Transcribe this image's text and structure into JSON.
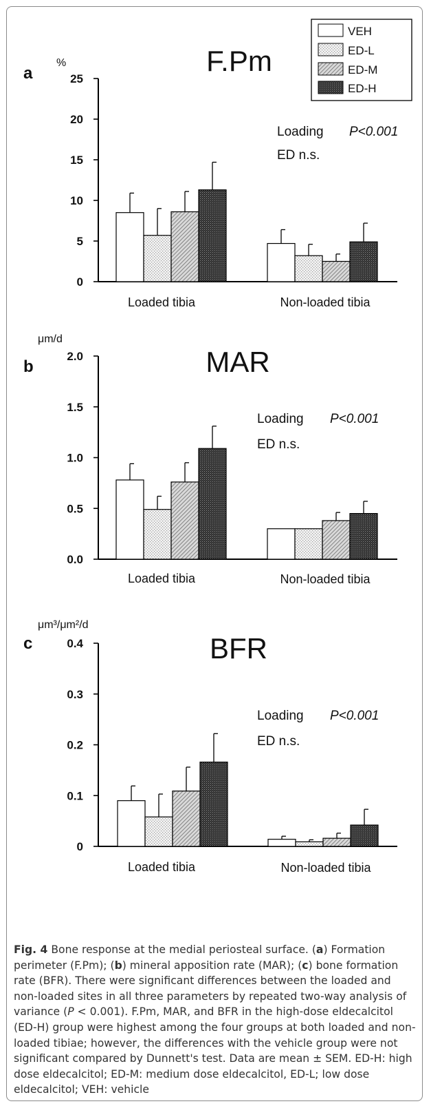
{
  "colors": {
    "axis": "#000000",
    "text": "#111111",
    "caption_text": "#333333"
  },
  "legend": {
    "entries": [
      {
        "label": "VEH",
        "pattern": "white-fill"
      },
      {
        "label": "ED-L",
        "pattern": "light-dots"
      },
      {
        "label": "ED-M",
        "pattern": "diagonal-hatch"
      },
      {
        "label": "ED-H",
        "pattern": "dark-crosshatch"
      }
    ]
  },
  "chart_data": [
    {
      "type": "bar",
      "panel_letter": "a",
      "title": "F.Pm",
      "ylabel": "%",
      "ylim": [
        0,
        25
      ],
      "yticks": [
        "0",
        "5",
        "10",
        "15",
        "20",
        "25"
      ],
      "tick_values": [
        0,
        5,
        10,
        15,
        20,
        25
      ],
      "categories": [
        "Loaded tibia",
        "Non-loaded tibia"
      ],
      "series": [
        {
          "name": "VEH",
          "values": [
            8.5,
            4.7
          ],
          "errors": [
            2.4,
            1.7
          ]
        },
        {
          "name": "ED-L",
          "values": [
            5.7,
            3.2
          ],
          "errors": [
            3.3,
            1.4
          ]
        },
        {
          "name": "ED-M",
          "values": [
            8.6,
            2.5
          ],
          "errors": [
            2.5,
            0.9
          ]
        },
        {
          "name": "ED-H",
          "values": [
            11.3,
            4.9
          ],
          "errors": [
            3.4,
            2.3
          ]
        }
      ],
      "annotations": {
        "loading_label": "Loading",
        "loading_p": "P<0.001",
        "ed_label": "ED n.s."
      },
      "grid": false,
      "legend_placement": "top-right"
    },
    {
      "type": "bar",
      "panel_letter": "b",
      "title": "MAR",
      "ylabel": "μm/d",
      "ylim": [
        0,
        2.0
      ],
      "yticks": [
        "0.0",
        "0.5",
        "1.0",
        "1.5",
        "2.0"
      ],
      "tick_values": [
        0,
        0.5,
        1.0,
        1.5,
        2.0
      ],
      "categories": [
        "Loaded tibia",
        "Non-loaded tibia"
      ],
      "series": [
        {
          "name": "VEH",
          "values": [
            0.78,
            0.3
          ],
          "errors": [
            0.16,
            0
          ]
        },
        {
          "name": "ED-L",
          "values": [
            0.49,
            0.3
          ],
          "errors": [
            0.13,
            0
          ]
        },
        {
          "name": "ED-M",
          "values": [
            0.76,
            0.38
          ],
          "errors": [
            0.19,
            0.08
          ]
        },
        {
          "name": "ED-H",
          "values": [
            1.09,
            0.45
          ],
          "errors": [
            0.22,
            0.12
          ]
        }
      ],
      "annotations": {
        "loading_label": "Loading",
        "loading_p": "P<0.001",
        "ed_label": "ED n.s."
      },
      "grid": false
    },
    {
      "type": "bar",
      "panel_letter": "c",
      "title": "BFR",
      "ylabel": "μm³/μm²/d",
      "ylim": [
        0,
        0.4
      ],
      "yticks": [
        "0",
        "0.1",
        "0.2",
        "0.3",
        "0.4"
      ],
      "tick_values": [
        0,
        0.1,
        0.2,
        0.3,
        0.4
      ],
      "categories": [
        "Loaded tibia",
        "Non-loaded tibia"
      ],
      "series": [
        {
          "name": "VEH",
          "values": [
            0.09,
            0.014
          ],
          "errors": [
            0.029,
            0.006
          ]
        },
        {
          "name": "ED-L",
          "values": [
            0.058,
            0.009
          ],
          "errors": [
            0.045,
            0.004
          ]
        },
        {
          "name": "ED-M",
          "values": [
            0.109,
            0.016
          ],
          "errors": [
            0.047,
            0.01
          ]
        },
        {
          "name": "ED-H",
          "values": [
            0.166,
            0.042
          ],
          "errors": [
            0.056,
            0.031
          ]
        }
      ],
      "annotations": {
        "loading_label": "Loading",
        "loading_p": "P<0.001",
        "ed_label": "ED n.s."
      },
      "grid": false
    }
  ],
  "caption": {
    "fig_label": "Fig. 4",
    "s1": " Bone response at the medial periosteal surface. (",
    "l_a": "a",
    "s2": ") Formation perimeter (F.Pm); (",
    "l_b": "b",
    "s3": ") mineral apposition rate (MAR); (",
    "l_c": "c",
    "s4": ") bone formation rate (BFR). There were significant differences between the loaded and non-loaded sites in all three parameters by repeated two-way analysis of variance (",
    "p_italic": "P",
    "s5": " < 0.001). F.Pm, MAR, and BFR in the high-dose eldecalcitol (ED-H) group were highest among the four groups at both loaded and non-loaded tibiae; however, the differences with the vehicle group were not significant compared by Dunnett's test. Data are mean ± SEM. ED-H: high dose eldecalcitol; ED-M: medium dose eldecalcitol, ED-L; low dose eldecalcitol; VEH: vehicle"
  }
}
